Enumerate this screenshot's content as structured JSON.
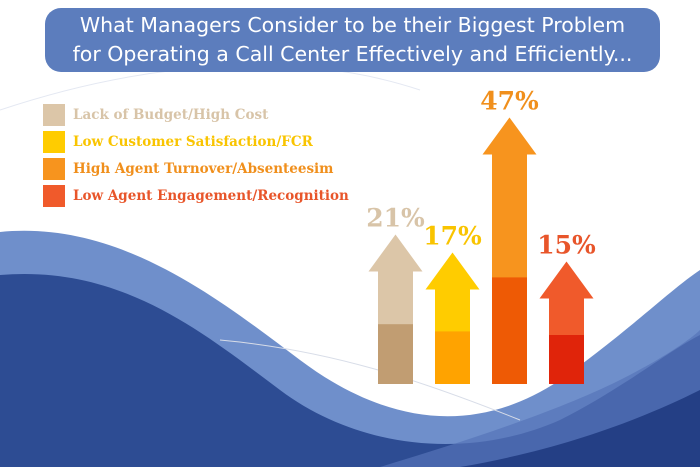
{
  "title": {
    "line1": "What Managers Consider to be their Biggest Problem",
    "line2": "for Operating a Call Center Effectively and Efficiently..."
  },
  "chart_data": {
    "type": "bar",
    "style": "arrows",
    "categories": [
      "Lack of Budget/High Cost",
      "Low Customer Satisfaction/FCR",
      "High Agent Turnover/Absenteesim",
      "Low Agent Engagement/Recognition"
    ],
    "values": [
      21,
      17,
      47,
      15
    ],
    "data_labels": [
      "21%",
      "17%",
      "47%",
      "15%"
    ],
    "legend_placement": "top-left",
    "colors": [
      {
        "light": "#dcc6a8",
        "dark": "#c19d72",
        "text": "#d8c4a8"
      },
      {
        "light": "#ffcc00",
        "dark": "#ffa300",
        "text": "#f9c400"
      },
      {
        "light": "#f7941e",
        "dark": "#ee5a05",
        "text": "#f08f1c"
      },
      {
        "light": "#f05a2b",
        "dark": "#e0240a",
        "text": "#e8552a"
      }
    ]
  },
  "background_colors": {
    "banner": "#5c7dbd",
    "wave_dark": "#2d4c93",
    "wave_light": "#6f8fcb"
  }
}
